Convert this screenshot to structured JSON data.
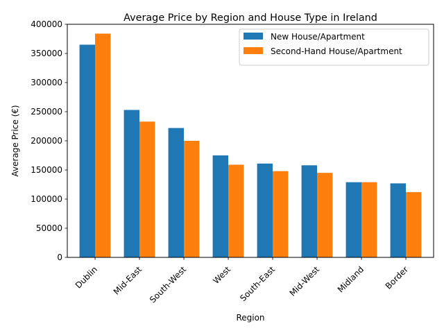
{
  "chart_data": {
    "type": "bar",
    "title": "Average Price by Region and House Type in Ireland",
    "xlabel": "Region",
    "ylabel": "Average Price (€)",
    "categories": [
      "Dublin",
      "Mid-East",
      "South-West",
      "West",
      "South-East",
      "Mid-West",
      "Midland",
      "Border"
    ],
    "series": [
      {
        "name": "New House/Apartment",
        "color": "#1f77b4",
        "values": [
          365000,
          253000,
          222000,
          175000,
          161000,
          158000,
          129000,
          127000
        ]
      },
      {
        "name": "Second-Hand House/Apartment",
        "color": "#ff7f0e",
        "values": [
          384000,
          233000,
          200000,
          159000,
          148000,
          145000,
          129000,
          112000
        ]
      }
    ],
    "ylim": [
      0,
      400000
    ],
    "yticks": [
      0,
      50000,
      100000,
      150000,
      200000,
      250000,
      300000,
      350000,
      400000
    ],
    "grid": false,
    "legend_position": "top-right",
    "xtick_rotation": 45
  }
}
